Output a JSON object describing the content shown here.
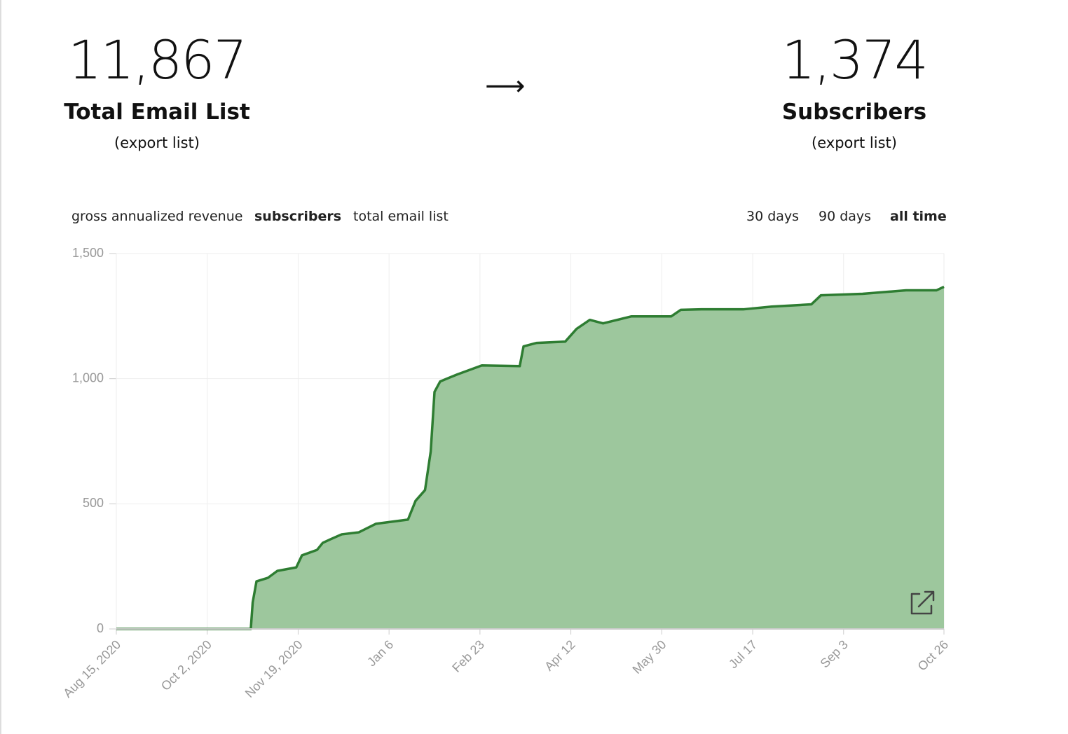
{
  "stats": [
    {
      "value": "11,867",
      "label": "Total Email List",
      "link": "(export list)"
    },
    {
      "value": "1,374",
      "label": "Subscribers",
      "link": "(export list)"
    }
  ],
  "arrow": "⟶",
  "metric_tabs": [
    {
      "label": "gross annualized revenue",
      "active": false
    },
    {
      "label": "subscribers",
      "active": true
    },
    {
      "label": "total email list",
      "active": false
    }
  ],
  "range_tabs": [
    {
      "label": "30 days",
      "active": false
    },
    {
      "label": "90 days",
      "active": false
    },
    {
      "label": "all time",
      "active": true
    }
  ],
  "chart_data": {
    "type": "area",
    "x": [
      0,
      71,
      72,
      74,
      80,
      85,
      95,
      98,
      106,
      109,
      113,
      119,
      128,
      137,
      154,
      158,
      163,
      166,
      168,
      171,
      180,
      193,
      213,
      215,
      222,
      237,
      243,
      250,
      257,
      272,
      293,
      298,
      309,
      331,
      346,
      367,
      372,
      394,
      417,
      433,
      437
    ],
    "series": [
      {
        "color": "#9dc79d",
        "line_color": "#2e7d32",
        "values": [
          0,
          0,
          106,
          190,
          204,
          232,
          246,
          294,
          316,
          344,
          358,
          378,
          386,
          420,
          437,
          512,
          555,
          709,
          947,
          989,
          1017,
          1053,
          1050,
          1129,
          1143,
          1148,
          1199,
          1235,
          1221,
          1249,
          1249,
          1275,
          1277,
          1277,
          1288,
          1297,
          1333,
          1339,
          1353,
          1353,
          1367
        ]
      }
    ],
    "xlim": [
      0,
      437
    ],
    "xticks": [
      {
        "value": 0,
        "label": "Aug 15, 2020"
      },
      {
        "value": 48,
        "label": "Oct 2, 2020"
      },
      {
        "value": 96,
        "label": "Nov 19, 2020"
      },
      {
        "value": 144,
        "label": "Jan 6"
      },
      {
        "value": 192,
        "label": "Feb 23"
      },
      {
        "value": 240,
        "label": "Apr 12"
      },
      {
        "value": 288,
        "label": "May 30"
      },
      {
        "value": 336,
        "label": "Jul 17"
      },
      {
        "value": 384,
        "label": "Sep 3"
      },
      {
        "value": 437,
        "label": "Oct 26"
      }
    ],
    "ylim": [
      0,
      1500
    ],
    "yticks": [
      {
        "value": 0,
        "label": "0"
      },
      {
        "value": 500,
        "label": "500"
      },
      {
        "value": 1000,
        "label": "1,000"
      },
      {
        "value": 1500,
        "label": "1,500"
      }
    ],
    "grid": true
  }
}
